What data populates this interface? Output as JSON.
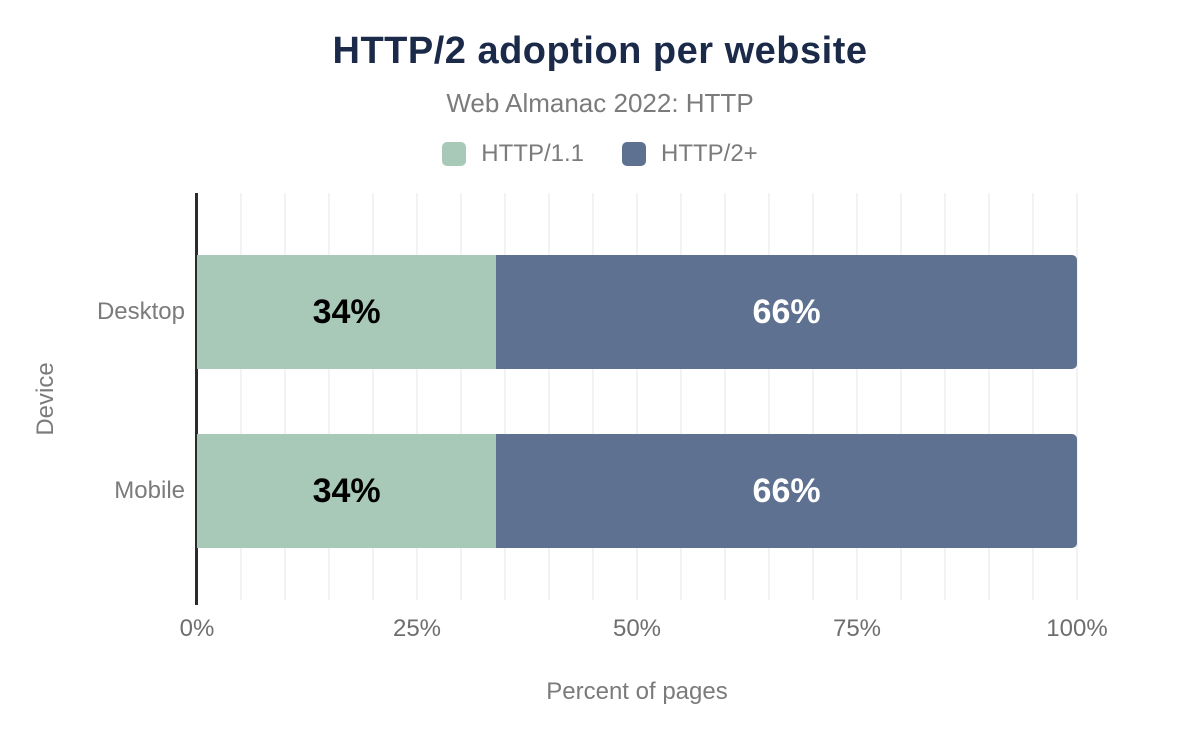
{
  "chart_data": {
    "type": "bar",
    "orientation": "horizontal",
    "stacked": true,
    "title": "HTTP/2 adoption per website",
    "subtitle": "Web Almanac 2022: HTTP",
    "xlabel": "Percent of pages",
    "ylabel": "Device",
    "categories": [
      "Desktop",
      "Mobile"
    ],
    "series": [
      {
        "name": "HTTP/1.1",
        "color": "#a9c9b8",
        "label_color": "#000000",
        "values": [
          34,
          34
        ]
      },
      {
        "name": "HTTP/2+",
        "color": "#5f7190",
        "label_color": "#ffffff",
        "values": [
          66,
          66
        ]
      }
    ],
    "value_labels": [
      [
        "34%",
        "66%"
      ],
      [
        "34%",
        "66%"
      ]
    ],
    "xlim": [
      0,
      100
    ],
    "x_ticks": [
      {
        "value": 0,
        "label": "0%"
      },
      {
        "value": 25,
        "label": "25%"
      },
      {
        "value": 50,
        "label": "50%"
      },
      {
        "value": 75,
        "label": "75%"
      },
      {
        "value": 100,
        "label": "100%"
      }
    ],
    "grid": {
      "step": 5,
      "show": true
    },
    "legend_position": "top"
  },
  "colors": {
    "background": "#ffffff",
    "title": "#1b2a49",
    "text_muted": "#7b7b7b",
    "tick": "#6e6e6e",
    "axis_line": "#2b2b2b",
    "grid": "#f2f2f2"
  }
}
